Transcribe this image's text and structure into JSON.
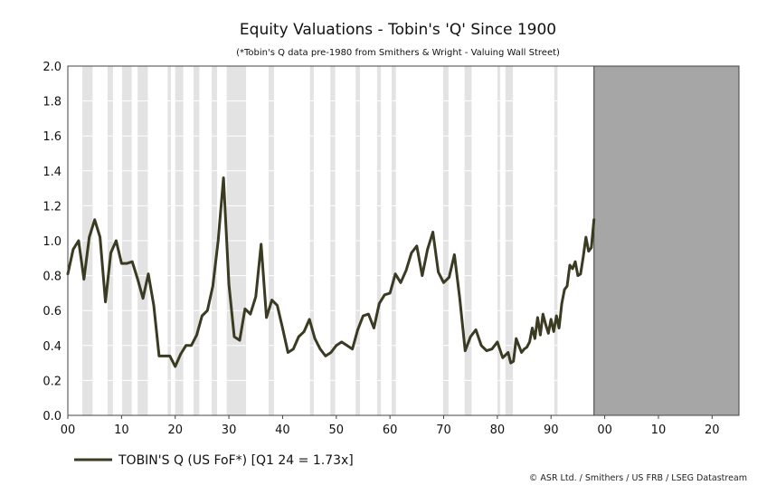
{
  "chart_data": {
    "type": "line",
    "title": "Equity Valuations - Tobin's 'Q' Since 1900",
    "subtitle": "(*Tobin's Q data pre-1980 from Smithers & Wright - Valuing Wall Street)",
    "xlabel": "",
    "ylabel": "",
    "xlim": [
      1900,
      2025
    ],
    "ylim": [
      0,
      2.0
    ],
    "y_ticks": [
      0.0,
      0.2,
      0.4,
      0.6,
      0.8,
      1.0,
      1.2,
      1.4,
      1.6,
      1.8,
      2.0
    ],
    "y_tick_labels": [
      "0.0",
      "0.2",
      "0.4",
      "0.6",
      "0.8",
      "1.0",
      "1.2",
      "1.4",
      "1.6",
      "1.8",
      "2.0"
    ],
    "x_ticks": [
      1900,
      1910,
      1920,
      1930,
      1940,
      1950,
      1960,
      1970,
      1980,
      1990,
      2000,
      2010,
      2020
    ],
    "x_tick_labels": [
      "00",
      "10",
      "20",
      "30",
      "40",
      "50",
      "60",
      "70",
      "80",
      "90",
      "00",
      "10",
      "20"
    ],
    "grid": true,
    "legend_position": "bottom-left",
    "recession_bands": [
      [
        1902.7,
        1904.6
      ],
      [
        1907.4,
        1908.4
      ],
      [
        1910.1,
        1911.9
      ],
      [
        1913.0,
        1914.9
      ],
      [
        1918.6,
        1919.2
      ],
      [
        1920.0,
        1921.5
      ],
      [
        1923.4,
        1924.5
      ],
      [
        1926.8,
        1927.8
      ],
      [
        1929.6,
        1933.2
      ],
      [
        1937.4,
        1938.4
      ],
      [
        1945.1,
        1945.8
      ],
      [
        1948.9,
        1949.8
      ],
      [
        1953.6,
        1954.4
      ],
      [
        1957.6,
        1958.3
      ],
      [
        1960.3,
        1961.1
      ],
      [
        1969.9,
        1970.9
      ],
      [
        1973.9,
        1975.2
      ],
      [
        1980.0,
        1980.5
      ],
      [
        1981.5,
        1982.9
      ],
      [
        1990.6,
        1991.2
      ]
    ],
    "shaded_region": [
      1998,
      2025
    ],
    "series": [
      {
        "name": "TOBIN'S Q (US FoF*) [Q1 24 = 1.73x]",
        "color": "#3b3a22",
        "x": [
          1900,
          1901,
          1902,
          1903,
          1904,
          1905,
          1906,
          1907,
          1908,
          1909,
          1910,
          1911,
          1912,
          1913,
          1914,
          1915,
          1916,
          1917,
          1918,
          1919,
          1920,
          1921,
          1922,
          1923,
          1924,
          1925,
          1926,
          1927,
          1928,
          1929,
          1930,
          1931,
          1932,
          1933,
          1934,
          1935,
          1936,
          1937,
          1938,
          1939,
          1940,
          1941,
          1942,
          1943,
          1944,
          1945,
          1946,
          1947,
          1948,
          1949,
          1950,
          1951,
          1952,
          1953,
          1954,
          1955,
          1956,
          1957,
          1958,
          1959,
          1960,
          1961,
          1962,
          1963,
          1964,
          1965,
          1966,
          1967,
          1968,
          1969,
          1970,
          1971,
          1972,
          1973,
          1974,
          1975,
          1976,
          1977,
          1978,
          1979,
          1980,
          1981,
          1982,
          1982.5,
          1983,
          1983.5,
          1984,
          1984.5,
          1985,
          1985.5,
          1986,
          1986.5,
          1987,
          1987.5,
          1988,
          1988.5,
          1989,
          1989.5,
          1990,
          1990.5,
          1991,
          1991.5,
          1992,
          1992.5,
          1993,
          1993.5,
          1994,
          1994.5,
          1995,
          1995.5,
          1996,
          1996.5,
          1997,
          1997.5,
          1998
        ],
        "values": [
          0.81,
          0.95,
          1.0,
          0.78,
          1.02,
          1.12,
          1.02,
          0.65,
          0.93,
          1.0,
          0.87,
          0.87,
          0.88,
          0.78,
          0.67,
          0.81,
          0.63,
          0.34,
          0.34,
          0.34,
          0.28,
          0.35,
          0.4,
          0.4,
          0.46,
          0.57,
          0.6,
          0.74,
          1.0,
          1.36,
          0.75,
          0.45,
          0.43,
          0.61,
          0.58,
          0.68,
          0.98,
          0.56,
          0.66,
          0.63,
          0.5,
          0.36,
          0.38,
          0.45,
          0.48,
          0.55,
          0.44,
          0.38,
          0.34,
          0.36,
          0.4,
          0.42,
          0.4,
          0.38,
          0.49,
          0.57,
          0.58,
          0.5,
          0.64,
          0.69,
          0.7,
          0.81,
          0.76,
          0.83,
          0.93,
          0.97,
          0.8,
          0.95,
          1.05,
          0.82,
          0.76,
          0.79,
          0.92,
          0.67,
          0.37,
          0.45,
          0.49,
          0.4,
          0.37,
          0.38,
          0.42,
          0.33,
          0.36,
          0.3,
          0.31,
          0.44,
          0.4,
          0.36,
          0.38,
          0.39,
          0.42,
          0.5,
          0.44,
          0.56,
          0.46,
          0.58,
          0.52,
          0.47,
          0.55,
          0.48,
          0.57,
          0.5,
          0.64,
          0.72,
          0.74,
          0.86,
          0.84,
          0.88,
          0.8,
          0.81,
          0.91,
          1.02,
          0.94,
          0.96,
          1.12
        ]
      }
    ]
  },
  "legend": {
    "label": "TOBIN'S Q (US FoF*) [Q1 24 = 1.73x]"
  },
  "source": "© ASR Ltd.  / Smithers  / US FRB  / LSEG Datastream",
  "colors": {
    "line": "#3b3a22",
    "band": "#e3e3e3",
    "shaded": "#a6a6a6",
    "grid": "#ffffff"
  }
}
